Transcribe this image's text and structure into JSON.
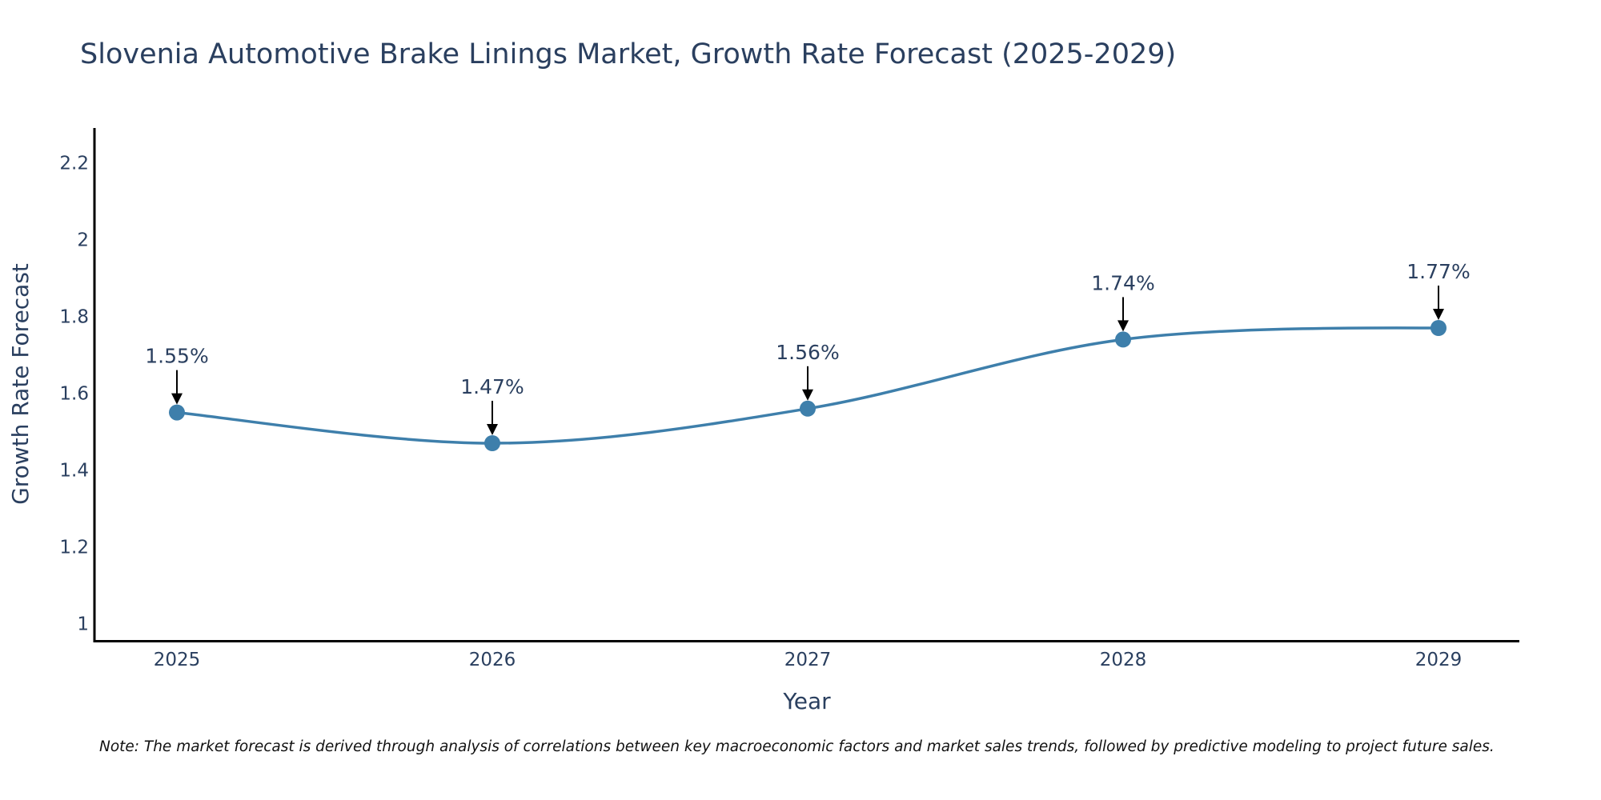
{
  "chart_data": {
    "type": "line",
    "title": "Slovenia Automotive Brake Linings Market, Growth Rate Forecast (2025-2029)",
    "xlabel": "Year",
    "ylabel": "Growth Rate Forecast",
    "categories": [
      "2025",
      "2026",
      "2027",
      "2028",
      "2029"
    ],
    "values": [
      1.55,
      1.47,
      1.56,
      1.74,
      1.77
    ],
    "data_labels": [
      "1.55%",
      "1.47%",
      "1.56%",
      "1.74%",
      "1.77%"
    ],
    "ylim": [
      0.97,
      2.27
    ],
    "yticks": [
      1,
      1.2,
      1.4,
      1.6,
      1.8,
      2,
      2.2
    ],
    "ytick_labels": [
      "1",
      "1.2",
      "1.4",
      "1.6",
      "1.8",
      "2",
      "2.2"
    ],
    "line_color": "#3e7fab",
    "marker_color": "#3e7fab",
    "arrow_color": "#000000",
    "grid": false,
    "note": "Note: The market forecast is derived through analysis of correlations between key macroeconomic factors and market sales trends, followed by predictive modeling to project future sales."
  }
}
